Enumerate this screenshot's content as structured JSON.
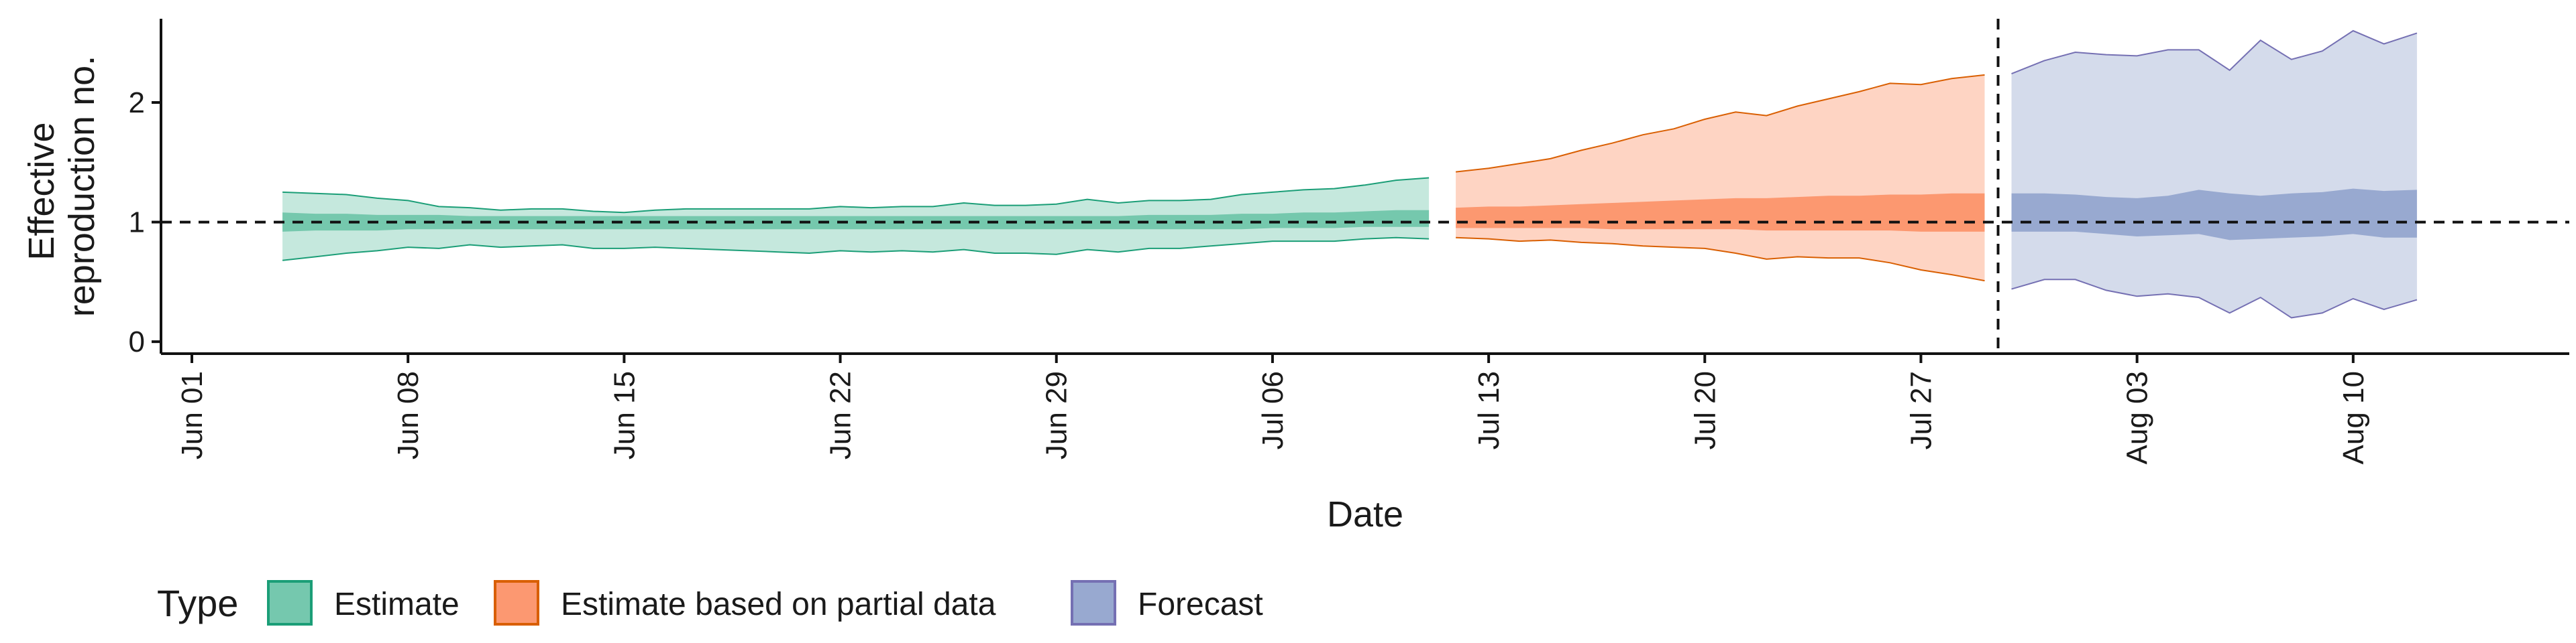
{
  "chart_data": {
    "type": "area",
    "xlabel": "Date",
    "ylabel": [
      "Effective",
      "reproduction no."
    ],
    "ylim": [
      -0.1,
      2.7
    ],
    "yticks": [
      0,
      1,
      2
    ],
    "xlim": [
      "2020-05-31",
      "2020-08-17"
    ],
    "xticks": [
      {
        "date": "2020-06-01",
        "label": "Jun 01"
      },
      {
        "date": "2020-06-08",
        "label": "Jun 08"
      },
      {
        "date": "2020-06-15",
        "label": "Jun 15"
      },
      {
        "date": "2020-06-22",
        "label": "Jun 22"
      },
      {
        "date": "2020-06-29",
        "label": "Jun 29"
      },
      {
        "date": "2020-07-06",
        "label": "Jul 06"
      },
      {
        "date": "2020-07-13",
        "label": "Jul 13"
      },
      {
        "date": "2020-07-20",
        "label": "Jul 20"
      },
      {
        "date": "2020-07-27",
        "label": "Jul 27"
      },
      {
        "date": "2020-08-03",
        "label": "Aug 03"
      },
      {
        "date": "2020-08-10",
        "label": "Aug 10"
      }
    ],
    "reference_line_y": 1,
    "vertical_line_x": "2020-07-29",
    "legend": {
      "title": "Type",
      "position": "bottom"
    },
    "series": [
      {
        "name": "Estimate",
        "fill": "#66c2a5",
        "stroke": "#1b9e77",
        "points": [
          {
            "x": "2020-06-04",
            "lo90": 0.68,
            "lo50": 0.92,
            "hi50": 1.08,
            "hi90": 1.25
          },
          {
            "x": "2020-06-05",
            "lo90": 0.71,
            "lo50": 0.93,
            "hi50": 1.07,
            "hi90": 1.24
          },
          {
            "x": "2020-06-06",
            "lo90": 0.74,
            "lo50": 0.93,
            "hi50": 1.07,
            "hi90": 1.23
          },
          {
            "x": "2020-06-07",
            "lo90": 0.76,
            "lo50": 0.93,
            "hi50": 1.06,
            "hi90": 1.2
          },
          {
            "x": "2020-06-08",
            "lo90": 0.79,
            "lo50": 0.94,
            "hi50": 1.06,
            "hi90": 1.18
          },
          {
            "x": "2020-06-09",
            "lo90": 0.78,
            "lo50": 0.94,
            "hi50": 1.06,
            "hi90": 1.13
          },
          {
            "x": "2020-06-10",
            "lo90": 0.81,
            "lo50": 0.94,
            "hi50": 1.05,
            "hi90": 1.12
          },
          {
            "x": "2020-06-11",
            "lo90": 0.79,
            "lo50": 0.94,
            "hi50": 1.05,
            "hi90": 1.1
          },
          {
            "x": "2020-06-12",
            "lo90": 0.8,
            "lo50": 0.94,
            "hi50": 1.05,
            "hi90": 1.11
          },
          {
            "x": "2020-06-13",
            "lo90": 0.81,
            "lo50": 0.94,
            "hi50": 1.05,
            "hi90": 1.11
          },
          {
            "x": "2020-06-14",
            "lo90": 0.78,
            "lo50": 0.94,
            "hi50": 1.05,
            "hi90": 1.09
          },
          {
            "x": "2020-06-15",
            "lo90": 0.78,
            "lo50": 0.94,
            "hi50": 1.05,
            "hi90": 1.08
          },
          {
            "x": "2020-06-16",
            "lo90": 0.79,
            "lo50": 0.94,
            "hi50": 1.05,
            "hi90": 1.1
          },
          {
            "x": "2020-06-17",
            "lo90": 0.78,
            "lo50": 0.94,
            "hi50": 1.05,
            "hi90": 1.11
          },
          {
            "x": "2020-06-18",
            "lo90": 0.77,
            "lo50": 0.94,
            "hi50": 1.05,
            "hi90": 1.11
          },
          {
            "x": "2020-06-19",
            "lo90": 0.76,
            "lo50": 0.94,
            "hi50": 1.05,
            "hi90": 1.11
          },
          {
            "x": "2020-06-20",
            "lo90": 0.75,
            "lo50": 0.94,
            "hi50": 1.05,
            "hi90": 1.11
          },
          {
            "x": "2020-06-21",
            "lo90": 0.74,
            "lo50": 0.94,
            "hi50": 1.05,
            "hi90": 1.11
          },
          {
            "x": "2020-06-22",
            "lo90": 0.76,
            "lo50": 0.94,
            "hi50": 1.05,
            "hi90": 1.13
          },
          {
            "x": "2020-06-23",
            "lo90": 0.75,
            "lo50": 0.94,
            "hi50": 1.05,
            "hi90": 1.12
          },
          {
            "x": "2020-06-24",
            "lo90": 0.76,
            "lo50": 0.94,
            "hi50": 1.05,
            "hi90": 1.13
          },
          {
            "x": "2020-06-25",
            "lo90": 0.75,
            "lo50": 0.94,
            "hi50": 1.05,
            "hi90": 1.13
          },
          {
            "x": "2020-06-26",
            "lo90": 0.77,
            "lo50": 0.94,
            "hi50": 1.05,
            "hi90": 1.16
          },
          {
            "x": "2020-06-27",
            "lo90": 0.74,
            "lo50": 0.94,
            "hi50": 1.05,
            "hi90": 1.14
          },
          {
            "x": "2020-06-28",
            "lo90": 0.74,
            "lo50": 0.94,
            "hi50": 1.05,
            "hi90": 1.14
          },
          {
            "x": "2020-06-29",
            "lo90": 0.73,
            "lo50": 0.94,
            "hi50": 1.05,
            "hi90": 1.15
          },
          {
            "x": "2020-06-30",
            "lo90": 0.77,
            "lo50": 0.94,
            "hi50": 1.05,
            "hi90": 1.19
          },
          {
            "x": "2020-07-01",
            "lo90": 0.75,
            "lo50": 0.94,
            "hi50": 1.05,
            "hi90": 1.16
          },
          {
            "x": "2020-07-02",
            "lo90": 0.78,
            "lo50": 0.94,
            "hi50": 1.06,
            "hi90": 1.18
          },
          {
            "x": "2020-07-03",
            "lo90": 0.78,
            "lo50": 0.94,
            "hi50": 1.06,
            "hi90": 1.18
          },
          {
            "x": "2020-07-04",
            "lo90": 0.8,
            "lo50": 0.94,
            "hi50": 1.06,
            "hi90": 1.19
          },
          {
            "x": "2020-07-05",
            "lo90": 0.82,
            "lo50": 0.94,
            "hi50": 1.07,
            "hi90": 1.23
          },
          {
            "x": "2020-07-06",
            "lo90": 0.84,
            "lo50": 0.95,
            "hi50": 1.07,
            "hi90": 1.25
          },
          {
            "x": "2020-07-07",
            "lo90": 0.84,
            "lo50": 0.95,
            "hi50": 1.08,
            "hi90": 1.27
          },
          {
            "x": "2020-07-08",
            "lo90": 0.84,
            "lo50": 0.95,
            "hi50": 1.08,
            "hi90": 1.28
          },
          {
            "x": "2020-07-09",
            "lo90": 0.86,
            "lo50": 0.96,
            "hi50": 1.09,
            "hi90": 1.31
          },
          {
            "x": "2020-07-10",
            "lo90": 0.87,
            "lo50": 0.96,
            "hi50": 1.1,
            "hi90": 1.35
          },
          {
            "x": "2020-07-11",
            "lo90": 0.86,
            "lo50": 0.96,
            "hi50": 1.1,
            "hi90": 1.37
          }
        ]
      },
      {
        "name": "Estimate based on partial data",
        "fill": "#fc8d62",
        "stroke": "#d95f02",
        "points": [
          {
            "x": "2020-07-12",
            "lo90": 0.87,
            "lo50": 0.95,
            "hi50": 1.12,
            "hi90": 1.42
          },
          {
            "x": "2020-07-13",
            "lo90": 0.86,
            "lo50": 0.95,
            "hi50": 1.13,
            "hi90": 1.45
          },
          {
            "x": "2020-07-14",
            "lo90": 0.84,
            "lo50": 0.95,
            "hi50": 1.13,
            "hi90": 1.49
          },
          {
            "x": "2020-07-15",
            "lo90": 0.85,
            "lo50": 0.95,
            "hi50": 1.14,
            "hi90": 1.53
          },
          {
            "x": "2020-07-16",
            "lo90": 0.83,
            "lo50": 0.95,
            "hi50": 1.15,
            "hi90": 1.6
          },
          {
            "x": "2020-07-17",
            "lo90": 0.82,
            "lo50": 0.94,
            "hi50": 1.16,
            "hi90": 1.66
          },
          {
            "x": "2020-07-18",
            "lo90": 0.8,
            "lo50": 0.94,
            "hi50": 1.17,
            "hi90": 1.73
          },
          {
            "x": "2020-07-19",
            "lo90": 0.79,
            "lo50": 0.94,
            "hi50": 1.18,
            "hi90": 1.78
          },
          {
            "x": "2020-07-20",
            "lo90": 0.78,
            "lo50": 0.94,
            "hi50": 1.19,
            "hi90": 1.86
          },
          {
            "x": "2020-07-21",
            "lo90": 0.74,
            "lo50": 0.94,
            "hi50": 1.2,
            "hi90": 1.92
          },
          {
            "x": "2020-07-22",
            "lo90": 0.69,
            "lo50": 0.93,
            "hi50": 1.2,
            "hi90": 1.89
          },
          {
            "x": "2020-07-23",
            "lo90": 0.71,
            "lo50": 0.93,
            "hi50": 1.21,
            "hi90": 1.97
          },
          {
            "x": "2020-07-24",
            "lo90": 0.7,
            "lo50": 0.93,
            "hi50": 1.22,
            "hi90": 2.03
          },
          {
            "x": "2020-07-25",
            "lo90": 0.7,
            "lo50": 0.93,
            "hi50": 1.22,
            "hi90": 2.09
          },
          {
            "x": "2020-07-26",
            "lo90": 0.66,
            "lo50": 0.93,
            "hi50": 1.23,
            "hi90": 2.16
          },
          {
            "x": "2020-07-27",
            "lo90": 0.6,
            "lo50": 0.92,
            "hi50": 1.23,
            "hi90": 2.15
          },
          {
            "x": "2020-07-28",
            "lo90": 0.56,
            "lo50": 0.92,
            "hi50": 1.24,
            "hi90": 2.2
          },
          {
            "x": "2020-07-29",
            "lo90": 0.51,
            "lo50": 0.92,
            "hi50": 1.24,
            "hi90": 2.23
          }
        ]
      },
      {
        "name": "Forecast",
        "fill": "#8da0cb",
        "stroke": "#7570b3",
        "points": [
          {
            "x": "2020-07-30",
            "lo90": 0.44,
            "lo50": 0.92,
            "hi50": 1.24,
            "hi90": 2.24
          },
          {
            "x": "2020-07-31",
            "lo90": 0.52,
            "lo50": 0.92,
            "hi50": 1.24,
            "hi90": 2.35
          },
          {
            "x": "2020-08-01",
            "lo90": 0.52,
            "lo50": 0.92,
            "hi50": 1.23,
            "hi90": 2.42
          },
          {
            "x": "2020-08-02",
            "lo90": 0.43,
            "lo50": 0.9,
            "hi50": 1.21,
            "hi90": 2.4
          },
          {
            "x": "2020-08-03",
            "lo90": 0.38,
            "lo50": 0.88,
            "hi50": 1.2,
            "hi90": 2.39
          },
          {
            "x": "2020-08-04",
            "lo90": 0.4,
            "lo50": 0.89,
            "hi50": 1.22,
            "hi90": 2.44
          },
          {
            "x": "2020-08-05",
            "lo90": 0.37,
            "lo50": 0.9,
            "hi50": 1.27,
            "hi90": 2.44
          },
          {
            "x": "2020-08-06",
            "lo90": 0.24,
            "lo50": 0.85,
            "hi50": 1.24,
            "hi90": 2.27
          },
          {
            "x": "2020-08-07",
            "lo90": 0.37,
            "lo50": 0.86,
            "hi50": 1.22,
            "hi90": 2.52
          },
          {
            "x": "2020-08-08",
            "lo90": 0.2,
            "lo50": 0.87,
            "hi50": 1.24,
            "hi90": 2.36
          },
          {
            "x": "2020-08-09",
            "lo90": 0.24,
            "lo50": 0.88,
            "hi50": 1.25,
            "hi90": 2.43
          },
          {
            "x": "2020-08-10",
            "lo90": 0.36,
            "lo50": 0.9,
            "hi50": 1.28,
            "hi90": 2.6
          },
          {
            "x": "2020-08-11",
            "lo90": 0.27,
            "lo50": 0.87,
            "hi50": 1.26,
            "hi90": 2.49
          },
          {
            "x": "2020-08-12",
            "lo90": 0.35,
            "lo50": 0.87,
            "hi50": 1.27,
            "hi90": 2.58
          }
        ]
      }
    ]
  }
}
